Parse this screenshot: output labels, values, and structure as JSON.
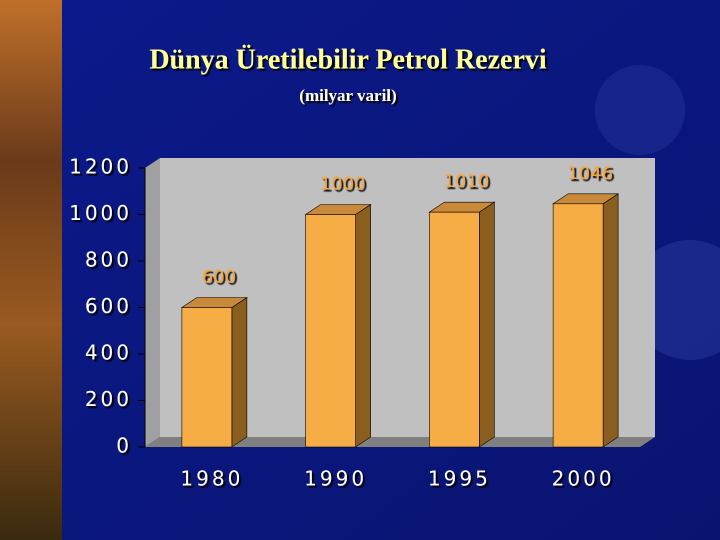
{
  "chart_data": {
    "type": "bar3d",
    "title": "Dünya Üretilebilir Petrol Rezervi",
    "subtitle": "(milyar varil)",
    "categories": [
      "1980",
      "1990",
      "1995",
      "2000"
    ],
    "values": [
      600,
      1000,
      1010,
      1046
    ],
    "color": "#f7ad45",
    "ylim": [
      0,
      1200
    ],
    "yticks": [
      0,
      200,
      400,
      600,
      800,
      1000,
      1200
    ],
    "grid": false
  }
}
